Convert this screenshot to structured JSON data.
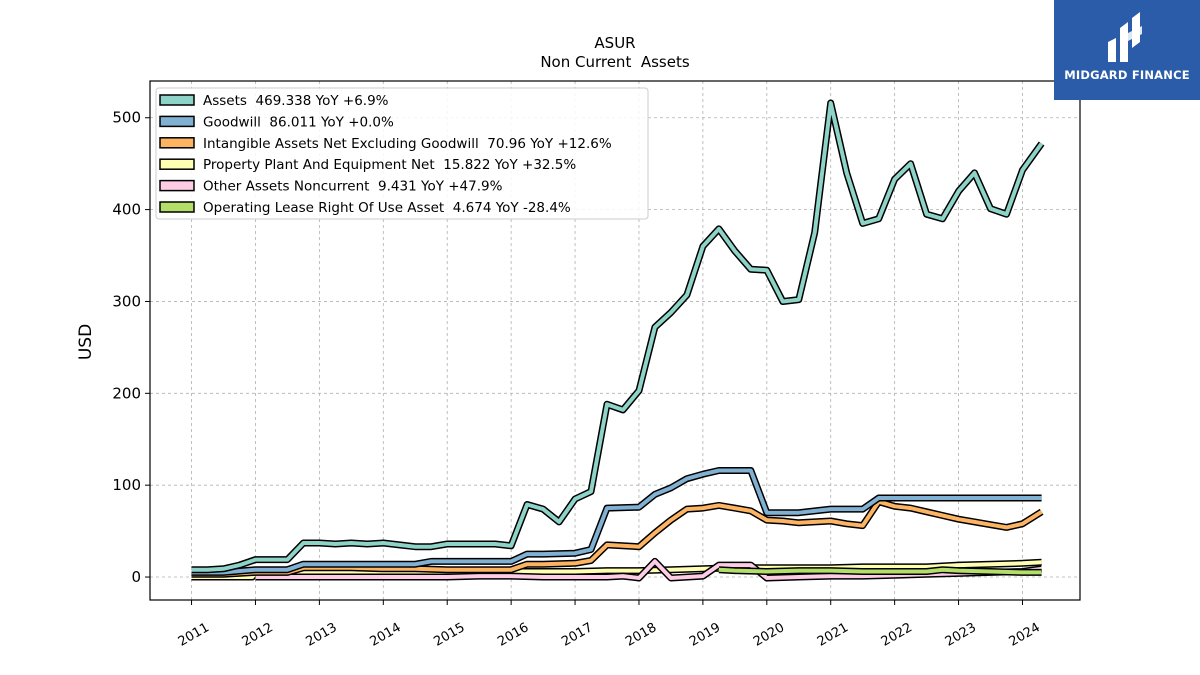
{
  "brand": {
    "name": "MIDGARD FINANCE",
    "bg_color": "#2a5caa"
  },
  "chart_data": {
    "type": "line",
    "title": "ASUR",
    "subtitle": "Non Current  Assets",
    "xlabel": "",
    "ylabel": "USD",
    "xlim": [
      2010.35,
      2024.9
    ],
    "ylim": [
      -25,
      540
    ],
    "x_ticks": [
      2011,
      2012,
      2013,
      2014,
      2015,
      2016,
      2017,
      2018,
      2019,
      2020,
      2021,
      2022,
      2023,
      2024
    ],
    "x_tick_labels": [
      "2011",
      "2012",
      "2013",
      "2014",
      "2015",
      "2016",
      "2017",
      "2018",
      "2019",
      "2020",
      "2021",
      "2022",
      "2023",
      "2024"
    ],
    "y_ticks": [
      0,
      100,
      200,
      300,
      400,
      500
    ],
    "y_tick_labels": [
      "0",
      "100",
      "200",
      "300",
      "400",
      "500"
    ],
    "grid": true,
    "legend_position": "top-left",
    "series": [
      {
        "name": "Assets",
        "legend": "Assets  469.338 YoY +6.9%",
        "color": "#8dd3c7",
        "x": [
          2011.0,
          2011.25,
          2011.5,
          2011.75,
          2012.0,
          2012.25,
          2012.5,
          2012.75,
          2013.0,
          2013.25,
          2013.5,
          2013.75,
          2014.0,
          2014.25,
          2014.5,
          2014.75,
          2015.0,
          2015.25,
          2015.5,
          2015.75,
          2016.0,
          2016.25,
          2016.5,
          2016.75,
          2017.0,
          2017.25,
          2017.5,
          2017.75,
          2018.0,
          2018.25,
          2018.5,
          2018.75,
          2019.0,
          2019.25,
          2019.5,
          2019.75,
          2020.0,
          2020.25,
          2020.5,
          2020.75,
          2021.0,
          2021.25,
          2021.5,
          2021.75,
          2022.0,
          2022.25,
          2022.5,
          2022.75,
          2023.0,
          2023.25,
          2023.5,
          2023.75,
          2024.0,
          2024.3
        ],
        "values": [
          8,
          8,
          9,
          13,
          19,
          19,
          19,
          37,
          37,
          36,
          37,
          36,
          37,
          35,
          33,
          33,
          36,
          36,
          36,
          36,
          34,
          79,
          74,
          60,
          85,
          93,
          188,
          182,
          203,
          272,
          288,
          307,
          360,
          379,
          355,
          335,
          334,
          300,
          302,
          375,
          516,
          440,
          385,
          390,
          433,
          450,
          395,
          390,
          420,
          440,
          401,
          395,
          443,
          472
        ]
      },
      {
        "name": "Goodwill",
        "legend": "Goodwill  86.011 YoY +0.0%",
        "color": "#80b1d3",
        "x": [
          2011.0,
          2011.5,
          2012.0,
          2012.5,
          2012.75,
          2013.0,
          2014.0,
          2014.5,
          2014.75,
          2015.0,
          2015.5,
          2016.0,
          2016.25,
          2016.5,
          2017.0,
          2017.25,
          2017.5,
          2018.0,
          2018.25,
          2018.5,
          2018.75,
          2019.0,
          2019.25,
          2019.5,
          2019.75,
          2020.0,
          2020.5,
          2021.0,
          2021.5,
          2021.75,
          2022.0,
          2024.3
        ],
        "values": [
          5,
          5,
          8,
          8,
          14,
          14,
          14,
          14,
          17,
          17,
          17,
          17,
          25,
          25,
          26,
          30,
          75,
          76,
          90,
          97,
          107,
          112,
          116,
          116,
          116,
          70,
          70,
          74,
          74,
          86,
          86,
          86
        ]
      },
      {
        "name": "Intangible Assets Net Excluding Goodwill",
        "legend": "Intangible Assets Net Excluding Goodwill  70.96 YoY +12.6%",
        "color": "#fdb462",
        "x": [
          2011.0,
          2011.5,
          2012.0,
          2012.5,
          2012.75,
          2013.0,
          2013.5,
          2014.0,
          2014.5,
          2015.0,
          2015.5,
          2016.0,
          2016.25,
          2016.5,
          2017.0,
          2017.25,
          2017.5,
          2018.0,
          2018.25,
          2018.5,
          2018.75,
          2019.0,
          2019.25,
          2019.5,
          2019.75,
          2020.0,
          2020.25,
          2020.5,
          2021.0,
          2021.25,
          2021.5,
          2021.75,
          2022.0,
          2022.25,
          2022.5,
          2022.75,
          2023.0,
          2023.25,
          2023.5,
          2023.75,
          2024.0,
          2024.3
        ],
        "values": [
          3,
          3,
          5,
          5,
          10,
          10,
          10,
          9,
          9,
          8,
          8,
          8,
          14,
          14,
          15,
          18,
          35,
          33,
          48,
          62,
          74,
          75,
          78,
          75,
          72,
          62,
          61,
          59,
          61,
          58,
          56,
          82,
          77,
          75,
          71,
          67,
          63,
          60,
          57,
          54,
          58,
          71
        ]
      },
      {
        "name": "Property Plant And Equipment Net",
        "legend": "Property Plant And Equipment Net  15.822 YoY +32.5%",
        "color": "#ffffb3",
        "x": [
          2011.0,
          2011.5,
          2011.95,
          2012.0,
          2013.0,
          2014.0,
          2015.0,
          2016.0,
          2017.0,
          2017.5,
          2018.0,
          2018.5,
          2019.0,
          2019.5,
          2020.0,
          2020.5,
          2021.0,
          2021.5,
          2022.0,
          2022.5,
          2023.0,
          2023.5,
          2024.0,
          2024.3
        ],
        "values": [
          0,
          0,
          0,
          5,
          5,
          5,
          5,
          6,
          6,
          7,
          7,
          8,
          9,
          10,
          10,
          10,
          10,
          11,
          11,
          11,
          13,
          14,
          15,
          16
        ]
      },
      {
        "name": "Other Assets Noncurrent",
        "legend": "Other Assets Noncurrent  9.431 YoY +47.9%",
        "color": "#fccde5",
        "x": [
          2012.0,
          2013.0,
          2014.0,
          2015.0,
          2015.5,
          2016.0,
          2016.5,
          2017.0,
          2017.5,
          2017.75,
          2018.0,
          2018.25,
          2018.5,
          2019.0,
          2019.25,
          2019.75,
          2020.0,
          2020.5,
          2021.0,
          2021.5,
          2022.0,
          2022.5,
          2023.0,
          2023.5,
          2024.0,
          2024.3
        ],
        "values": [
          0,
          0,
          0,
          0,
          1,
          1,
          0,
          0,
          0,
          1,
          -1,
          17,
          -1,
          1,
          13,
          13,
          -1,
          0,
          1,
          1,
          2,
          3,
          4,
          5,
          6,
          9
        ]
      },
      {
        "name": "Operating Lease Right Of Use Asset",
        "legend": "Operating Lease Right Of Use Asset  4.674 YoY -28.4%",
        "color": "#b3de69",
        "x": [
          2019.25,
          2019.5,
          2020.0,
          2020.5,
          2021.0,
          2021.5,
          2022.0,
          2022.5,
          2022.75,
          2023.0,
          2023.5,
          2024.0,
          2024.3
        ],
        "values": [
          8,
          7,
          6,
          7,
          7,
          6,
          6,
          6,
          8,
          7,
          6,
          5,
          5
        ]
      }
    ]
  }
}
